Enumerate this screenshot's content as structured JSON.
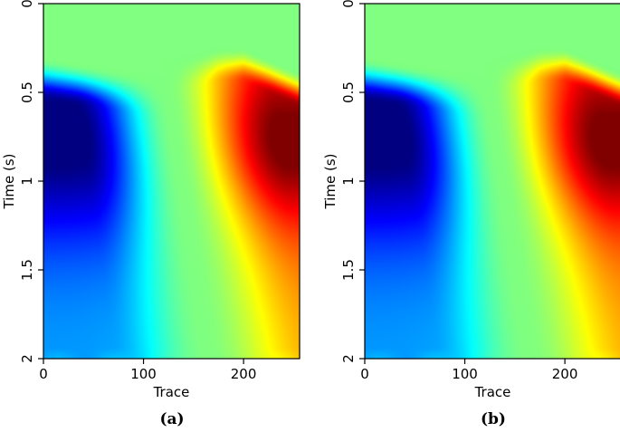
{
  "chart_data": [
    {
      "type": "heatmap",
      "title": "",
      "panel_label": "(a)",
      "xlabel": "Trace",
      "ylabel": "Time (s)",
      "xlim": [
        0,
        256
      ],
      "ylim": [
        0,
        2
      ],
      "y_inverted": true,
      "x_ticks": [
        0,
        100,
        200
      ],
      "x_tick_labels": [
        "0",
        "100",
        "200"
      ],
      "y_ticks": [
        0,
        0.5,
        1,
        1.5,
        2
      ],
      "y_tick_labels": [
        "0",
        "0.5",
        "1",
        "1.5",
        "2"
      ],
      "colormap": "jet",
      "colormap_colors": [
        "#00007f",
        "#0000ff",
        "#00ffff",
        "#7fff7f",
        "#ffff00",
        "#ff0000",
        "#7f0000"
      ],
      "background_value_color": "#80ff80",
      "features": {
        "negative_lobe": {
          "trace_range": [
            0,
            140
          ],
          "onset_time": 0.38,
          "peak_time": 0.75,
          "peak_trace": 10,
          "sign": "negative"
        },
        "positive_lobe": {
          "trace_range": [
            150,
            256
          ],
          "onset_time": 0.33,
          "peak_time": 0.75,
          "peak_trace": 256,
          "sign": "positive"
        },
        "zero_crossing_trace_at_top": 120,
        "zero_crossing_trace_at_bottom": 165
      }
    },
    {
      "type": "heatmap",
      "title": "",
      "panel_label": "(b)",
      "xlabel": "Trace",
      "ylabel": "Time (s)",
      "xlim": [
        0,
        256
      ],
      "ylim": [
        0,
        2
      ],
      "y_inverted": true,
      "x_ticks": [
        0,
        100,
        200
      ],
      "x_tick_labels": [
        "0",
        "100",
        "200"
      ],
      "y_ticks": [
        0,
        0.5,
        1,
        1.5,
        2
      ],
      "y_tick_labels": [
        "0",
        "0.5",
        "1",
        "1.5",
        "2"
      ],
      "colormap": "jet",
      "colormap_colors": [
        "#00007f",
        "#0000ff",
        "#00ffff",
        "#7fff7f",
        "#ffff00",
        "#ff0000",
        "#7f0000"
      ],
      "background_value_color": "#80ff80",
      "features": {
        "negative_lobe": {
          "trace_range": [
            0,
            140
          ],
          "onset_time": 0.38,
          "peak_time": 0.75,
          "peak_trace": 10,
          "sign": "negative"
        },
        "positive_lobe": {
          "trace_range": [
            150,
            256
          ],
          "onset_time": 0.33,
          "peak_time": 0.75,
          "peak_trace": 256,
          "sign": "positive"
        },
        "zero_crossing_trace_at_top": 120,
        "zero_crossing_trace_at_bottom": 165
      }
    }
  ]
}
